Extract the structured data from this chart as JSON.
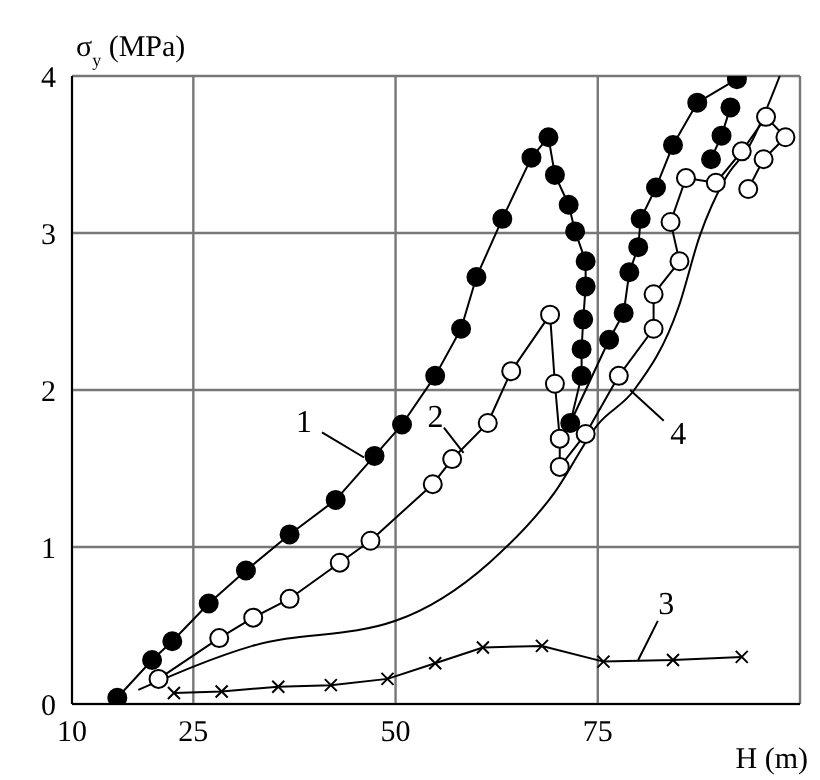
{
  "chart_data": {
    "type": "line",
    "xlabel": "H (m)",
    "ylabel": "σ$_{y}$ (MPa)",
    "xlim": [
      10,
      100
    ],
    "ylim": [
      0,
      4
    ],
    "xticks": [
      10,
      25,
      50,
      75
    ],
    "yticks": [
      0,
      1,
      2,
      3,
      4
    ],
    "grid": true,
    "legend": false,
    "series": [
      {
        "color": "#000000",
        "marker": "circle",
        "x": [
          15.6,
          19.9,
          22.4,
          26.9,
          31.5,
          36.9,
          42.6,
          47.4,
          50.8,
          54.9,
          58.1,
          60.0,
          63.2,
          66.8,
          68.9,
          69.7,
          71.4,
          72.2,
          73.5,
          73.5,
          73.2,
          73.0,
          73.0,
          71.6,
          76.4,
          78.2,
          78.9,
          80.0,
          80.3,
          82.2,
          84.3,
          87.3,
          92.2
        ],
        "values": [
          0.04,
          0.28,
          0.4,
          0.64,
          0.85,
          1.08,
          1.3,
          1.58,
          1.78,
          2.09,
          2.39,
          2.72,
          3.09,
          3.48,
          3.61,
          3.37,
          3.18,
          3.01,
          2.82,
          2.66,
          2.45,
          2.26,
          2.09,
          1.79,
          2.32,
          2.49,
          2.75,
          2.91,
          3.09,
          3.29,
          3.56,
          3.83,
          3.98
        ]
      },
      {
        "color": "#000000",
        "marker": "circle",
        "x": [
          89.0,
          90.3,
          91.4
        ],
        "values": [
          3.47,
          3.62,
          3.8
        ]
      },
      {
        "color": "#000000",
        "marker": "circle",
        "colors": [
          "#ffffff",
          "#ffffff",
          "#ffffff",
          "#ffffff",
          "#ffffff",
          "#ffffff",
          "#ffffff",
          "#ffffff",
          "#ffffff",
          "#ffffff",
          "#ffffff",
          "#ffffff",
          "#ffffff",
          "#ffffff",
          "#ffffff",
          "#ffffff",
          "#ffffff",
          "#ffffff",
          "#ffffff",
          "#ffffff",
          "#ffffff",
          "#ffffff",
          "#ffffff",
          "#ffffff",
          "#ffffff",
          "#ffffff",
          "#ffffff"
        ],
        "x": [
          20.7,
          28.2,
          32.4,
          36.9,
          43.1,
          46.9,
          54.6,
          57.0,
          61.4,
          64.3,
          69.1,
          69.7,
          70.3,
          70.3,
          73.5,
          77.6,
          81.9,
          81.9,
          85.1,
          84.0,
          85.9,
          89.6,
          92.8,
          95.8,
          98.2,
          95.5,
          93.6
        ],
        "values": [
          0.16,
          0.42,
          0.55,
          0.67,
          0.9,
          1.04,
          1.4,
          1.56,
          1.79,
          2.12,
          2.48,
          2.04,
          1.69,
          1.51,
          1.72,
          2.09,
          2.39,
          2.61,
          2.82,
          3.07,
          3.35,
          3.32,
          3.52,
          3.74,
          3.61,
          3.47,
          3.28
        ]
      },
      {
        "color": "#000000",
        "marker": "cross",
        "x": [
          22.6,
          28.5,
          35.5,
          42.0,
          49.0,
          54.9,
          60.8,
          68.1,
          75.7,
          84.3,
          92.8
        ],
        "values": [
          0.07,
          0.08,
          0.11,
          0.12,
          0.16,
          0.26,
          0.36,
          0.37,
          0.27,
          0.28,
          0.3
        ]
      },
      {
        "color": "#000000",
        "marker": "none",
        "x": [
          18.2,
          32.3,
          50.0,
          61.6,
          69.7,
          75.0,
          79.5,
          85.0,
          87.6,
          90.8,
          93.8,
          97.5
        ],
        "values": [
          0.09,
          0.37,
          0.53,
          0.9,
          1.35,
          1.78,
          2.0,
          2.53,
          2.98,
          3.35,
          3.56,
          4.0
        ]
      }
    ],
    "annotations": [
      {
        "text": "1",
        "x": 46.1,
        "y": 1.57
      },
      {
        "text": "2",
        "x": 58.4,
        "y": 1.6
      },
      {
        "text": "3",
        "x": 80,
        "y": 0.28
      },
      {
        "text": "4",
        "x": 79,
        "y": 2.0
      }
    ]
  }
}
